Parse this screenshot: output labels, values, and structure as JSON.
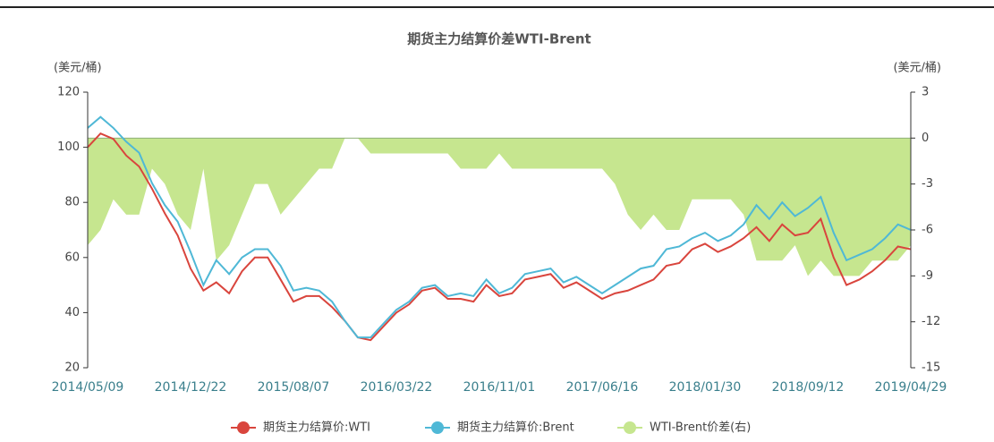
{
  "chart_data": {
    "type": "line",
    "title": "期货主力结算价差WTI-Brent",
    "y_label": "(美元/桶)",
    "y2_label": "(美元/桶)",
    "categories": [
      "2014/05/09",
      null,
      null,
      null,
      null,
      null,
      null,
      null,
      "2014/12/22",
      null,
      null,
      null,
      null,
      null,
      null,
      null,
      "2015/08/07",
      null,
      null,
      null,
      null,
      null,
      null,
      null,
      "2016/03/22",
      null,
      null,
      null,
      null,
      null,
      null,
      null,
      "2016/11/01",
      null,
      null,
      null,
      null,
      null,
      null,
      null,
      "2017/06/16",
      null,
      null,
      null,
      null,
      null,
      null,
      null,
      "2018/01/30",
      null,
      null,
      null,
      null,
      null,
      null,
      null,
      "2018/09/12",
      null,
      null,
      null,
      null,
      null,
      null,
      null,
      "2019/04/29"
    ],
    "ylim": [
      20,
      120
    ],
    "yticks": [
      20,
      40,
      60,
      80,
      100,
      120
    ],
    "y2lim": [
      -15,
      3
    ],
    "y2ticks": [
      -15,
      -12,
      -9,
      -6,
      -3,
      0,
      3
    ],
    "legend": "bottom",
    "series": [
      {
        "name": "WTI-Brent价差(右)",
        "color": "#c6e68f",
        "axis": "y2",
        "kind": "area",
        "values": [
          -7,
          -6,
          -4,
          -5,
          -5,
          -2,
          -3,
          -5,
          -6,
          -2,
          -8,
          -7,
          -5,
          -3,
          -3,
          -5,
          -4,
          -3,
          -2,
          -2,
          0,
          0,
          -1,
          -1,
          -1,
          -1,
          -1,
          -1,
          -1,
          -2,
          -2,
          -2,
          -1,
          -2,
          -2,
          -2,
          -2,
          -2,
          -2,
          -2,
          -2,
          -3,
          -5,
          -6,
          -5,
          -6,
          -6,
          -4,
          -4,
          -4,
          -4,
          -5,
          -8,
          -8,
          -8,
          -7,
          -9,
          -8,
          -9,
          -9,
          -9,
          -8,
          -8,
          -8,
          -7
        ]
      },
      {
        "name": "期货主力结算价:WTI",
        "color": "#d9453d",
        "kind": "line",
        "values": [
          100,
          105,
          103,
          97,
          93,
          85,
          76,
          68,
          56,
          48,
          51,
          47,
          55,
          60,
          60,
          52,
          44,
          46,
          46,
          42,
          37,
          31,
          30,
          35,
          40,
          43,
          48,
          49,
          45,
          45,
          44,
          50,
          46,
          47,
          52,
          53,
          54,
          49,
          51,
          48,
          45,
          47,
          48,
          50,
          52,
          57,
          58,
          63,
          65,
          62,
          64,
          67,
          71,
          66,
          72,
          68,
          69,
          74,
          60,
          50,
          52,
          55,
          59,
          64,
          63
        ]
      },
      {
        "name": "期货主力结算价:Brent",
        "color": "#4fb8d6",
        "kind": "line",
        "values": [
          107,
          111,
          107,
          102,
          98,
          87,
          79,
          73,
          62,
          50,
          59,
          54,
          60,
          63,
          63,
          57,
          48,
          49,
          48,
          44,
          37,
          31,
          31,
          36,
          41,
          44,
          49,
          50,
          46,
          47,
          46,
          52,
          47,
          49,
          54,
          55,
          56,
          51,
          53,
          50,
          47,
          50,
          53,
          56,
          57,
          63,
          64,
          67,
          69,
          66,
          68,
          72,
          79,
          74,
          80,
          75,
          78,
          82,
          69,
          59,
          61,
          63,
          67,
          72,
          70
        ]
      }
    ]
  }
}
